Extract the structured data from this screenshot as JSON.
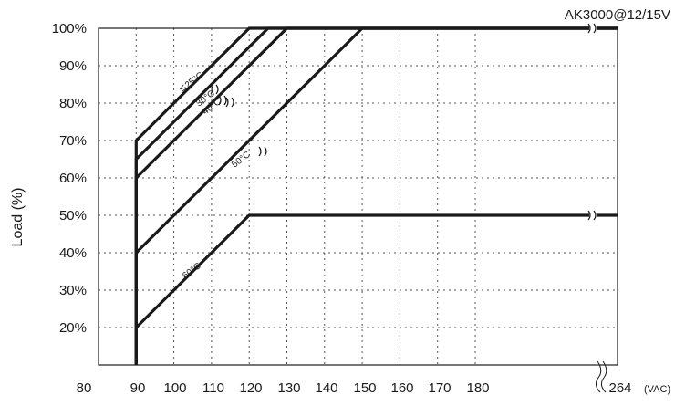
{
  "chart_data": {
    "type": "line",
    "title": "AK3000@12/15V",
    "xlabel": "",
    "x_unit": "(VAC)",
    "ylabel": "Load (%)",
    "x_ticks": [
      "80",
      "90",
      "100",
      "110",
      "120",
      "130",
      "140",
      "150",
      "160",
      "170",
      "180",
      "264"
    ],
    "y_ticks": [
      "20%",
      "30%",
      "40%",
      "50%",
      "60%",
      "70%",
      "80%",
      "90%",
      "100%"
    ],
    "xlim": [
      80,
      264
    ],
    "ylim": [
      10,
      100
    ],
    "x_axis_break_between": [
      180,
      264
    ],
    "grid": true,
    "colors": {
      "line": "#1a1a1a",
      "grid": "#555555"
    },
    "series": [
      {
        "name": "≦25°C",
        "x": [
          90,
          90,
          120,
          264
        ],
        "y": [
          10,
          70,
          100,
          100
        ]
      },
      {
        "name": "30°C",
        "x": [
          90,
          90,
          125,
          264
        ],
        "y": [
          10,
          65,
          100,
          100
        ]
      },
      {
        "name": "40°C",
        "x": [
          90,
          90,
          130,
          264
        ],
        "y": [
          10,
          60,
          100,
          100
        ]
      },
      {
        "name": "50°C",
        "x": [
          90,
          90,
          150,
          264
        ],
        "y": [
          10,
          40,
          100,
          100
        ]
      },
      {
        "name": "60°C",
        "x": [
          90,
          90,
          120,
          264
        ],
        "y": [
          10,
          20,
          50,
          50
        ]
      }
    ]
  }
}
